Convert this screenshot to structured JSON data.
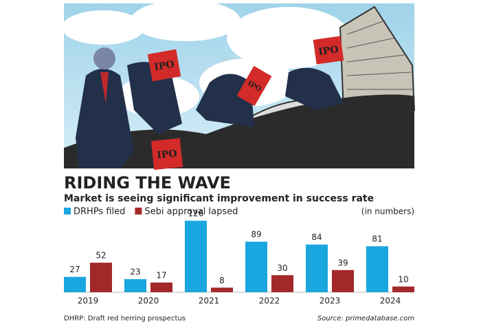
{
  "illustration": {
    "signs": [
      "IPO",
      "IPO",
      "IPO",
      "IPO"
    ]
  },
  "chart_data": {
    "type": "bar",
    "title": "RIDING THE WAVE",
    "subtitle": "Market is seeing significant improvement in success rate",
    "unit_note": "(in numbers)",
    "categories": [
      "2019",
      "2020",
      "2021",
      "2022",
      "2023",
      "2024"
    ],
    "series": [
      {
        "name": "DRHPs filed",
        "color": "#1aa6df",
        "values": [
          27,
          23,
          126,
          89,
          84,
          81
        ]
      },
      {
        "name": "Sebi approval lapsed",
        "color": "#a3282a",
        "values": [
          52,
          17,
          8,
          30,
          39,
          10
        ]
      }
    ],
    "footnote": "DHRP: Draft red herring prospectus",
    "source": "Source: primedatabase.com"
  }
}
